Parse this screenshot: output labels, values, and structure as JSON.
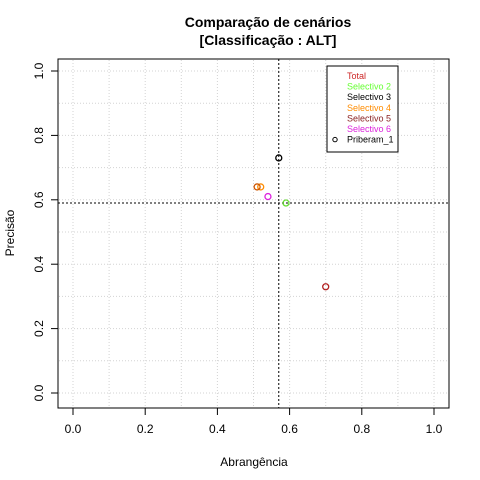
{
  "chart_data": {
    "type": "scatter",
    "title": "Comparação de cenários",
    "subtitle": "[Classificação : ALT]",
    "xlabel": "Abrangência",
    "ylabel": "Precisão",
    "xlim": [
      0,
      1
    ],
    "ylim": [
      0,
      1
    ],
    "xticks": [
      0,
      0.2,
      0.4,
      0.6,
      0.8,
      1
    ],
    "yticks": [
      0,
      0.2,
      0.4,
      0.6,
      0.8,
      1
    ],
    "xtick_labels": [
      "0.0",
      "0.2",
      "0.4",
      "0.6",
      "0.8",
      "1.0"
    ],
    "ytick_labels": [
      "0.0",
      "0.2",
      "0.4",
      "0.6",
      "0.8",
      "1.0"
    ],
    "grid": true,
    "legend_position": "top-right",
    "reference_lines": {
      "vertical_x": 0.57,
      "horizontal_y": 0.59
    },
    "series": [
      {
        "name": "Total",
        "color": "#cd2626",
        "x": 0.7,
        "y": 0.33,
        "marker": "none"
      },
      {
        "name": "Selectivo 2",
        "color": "#66ff33",
        "x": 0.59,
        "y": 0.59,
        "marker": "none"
      },
      {
        "name": "Selectivo 3",
        "color": "#000000",
        "x": 0.57,
        "y": 0.73,
        "marker": "none"
      },
      {
        "name": "Selectivo 4",
        "color": "#ff8c00",
        "x": 0.52,
        "y": 0.64,
        "marker": "none"
      },
      {
        "name": "Selectivo 5",
        "color": "#8b2323",
        "x": 0.51,
        "y": 0.64,
        "marker": "none"
      },
      {
        "name": "Selectivo 6",
        "color": "#dd22dd",
        "x": 0.54,
        "y": 0.61,
        "marker": "none"
      },
      {
        "name": "Priberam_1",
        "color": "#000000",
        "x": null,
        "y": null,
        "marker": "circle"
      }
    ],
    "points": [
      {
        "x": 0.7,
        "y": 0.33,
        "color": "#b22222"
      },
      {
        "x": 0.59,
        "y": 0.59,
        "color": "#66dd33"
      },
      {
        "x": 0.57,
        "y": 0.73,
        "color": "#000000"
      },
      {
        "x": 0.52,
        "y": 0.64,
        "color": "#ff8c00"
      },
      {
        "x": 0.51,
        "y": 0.64,
        "color": "#cd5500"
      },
      {
        "x": 0.54,
        "y": 0.61,
        "color": "#dd22dd"
      }
    ]
  }
}
